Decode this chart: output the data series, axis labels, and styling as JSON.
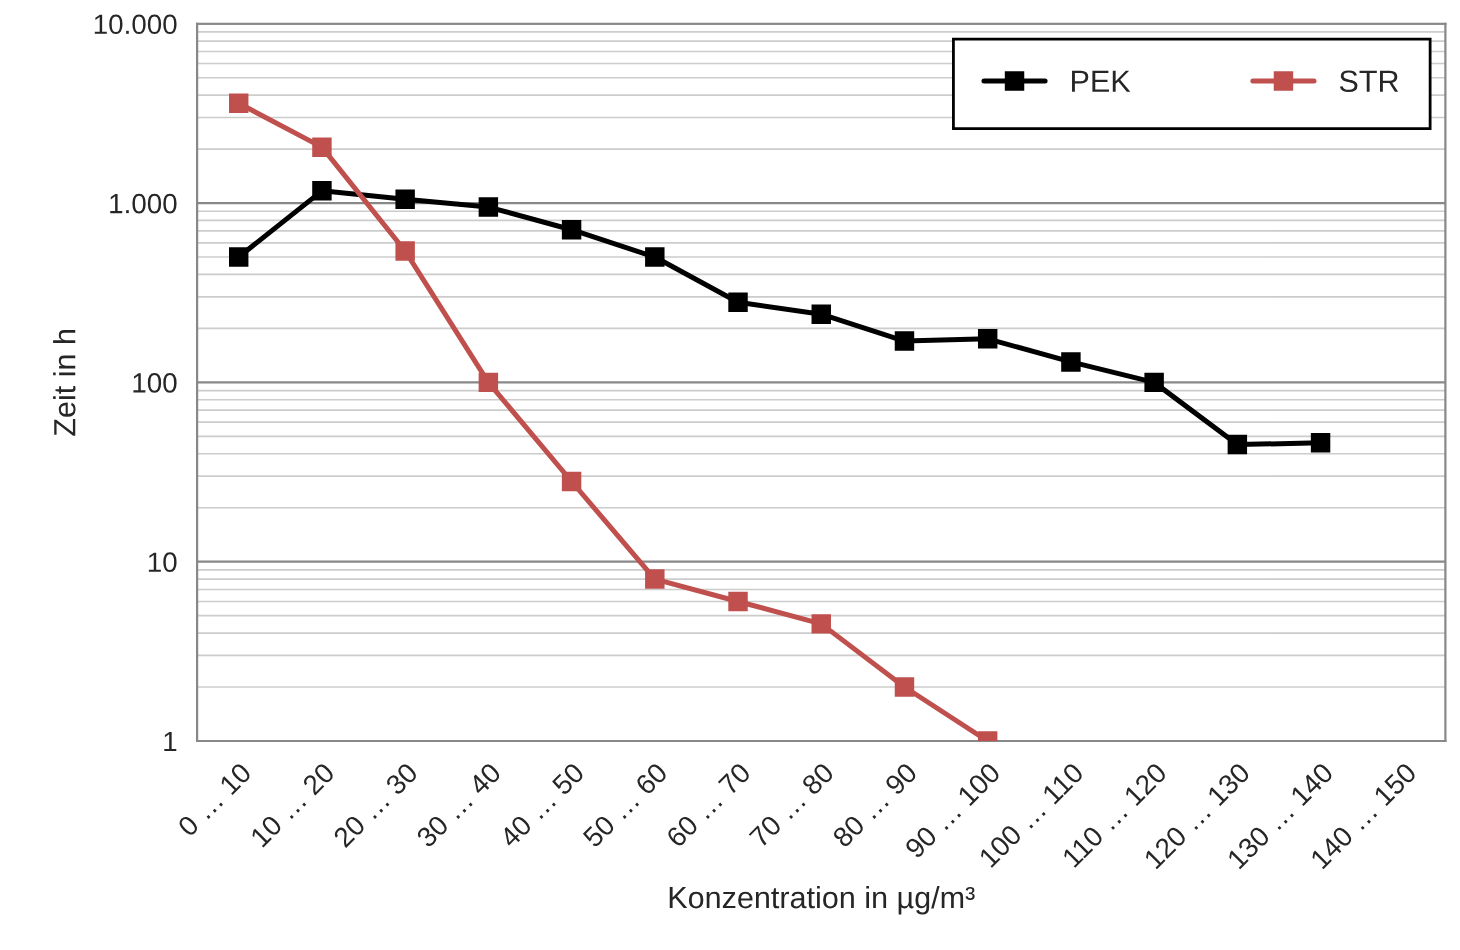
{
  "chart_data": {
    "type": "line",
    "xlabel": "Konzentration in µg/m³",
    "ylabel": "Zeit in h",
    "categories": [
      "0 … 10",
      "10 … 20",
      "20 … 30",
      "30 … 40",
      "40 … 50",
      "50 … 60",
      "60 … 70",
      "70 … 80",
      "80 … 90",
      "90 … 100",
      "100 … 110",
      "110 … 120",
      "120 … 130",
      "130 … 140",
      "140 … 150"
    ],
    "series": [
      {
        "name": "PEK",
        "color": "#000000",
        "values": [
          500,
          1170,
          1050,
          950,
          710,
          500,
          280,
          240,
          170,
          175,
          130,
          100,
          45,
          46,
          null
        ]
      },
      {
        "name": "STR",
        "color": "#c0504d",
        "values": [
          3600,
          2050,
          540,
          100,
          28,
          8,
          6,
          4.5,
          2,
          1,
          null,
          null,
          null,
          null,
          null
        ]
      }
    ],
    "log": "y",
    "ylim": [
      1,
      10000
    ],
    "yticks": [
      1,
      10,
      100,
      {
        "value": 1000,
        "label": "1.000"
      },
      {
        "value": 10000,
        "label": "10.000"
      }
    ],
    "grid": "y",
    "legend": "top right",
    "marker": "square",
    "line_style": "solid"
  }
}
